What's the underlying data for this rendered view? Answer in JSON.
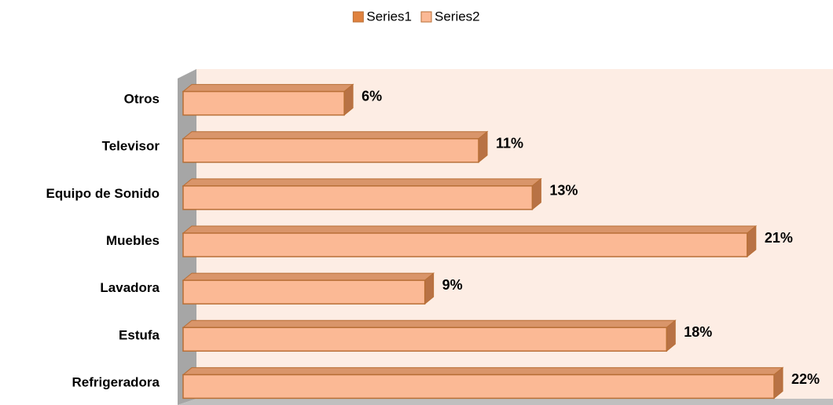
{
  "chart_data": {
    "type": "bar",
    "orientation": "horizontal",
    "categories": [
      "Refrigeradora",
      "Estufa",
      "Lavadora",
      "Muebles",
      "Equipo de Sonido",
      "Televisor",
      "Otros"
    ],
    "series": [
      {
        "name": "Series1",
        "color": "#e0823f",
        "values": [
          null,
          null,
          null,
          null,
          null,
          null,
          null
        ]
      },
      {
        "name": "Series2",
        "color": "#fbb995",
        "values": [
          22,
          18,
          9,
          21,
          13,
          11,
          6
        ],
        "value_labels": [
          "22%",
          "18%",
          "9%",
          "21%",
          "13%",
          "11%",
          "6%"
        ]
      }
    ],
    "legend": "top"
  }
}
